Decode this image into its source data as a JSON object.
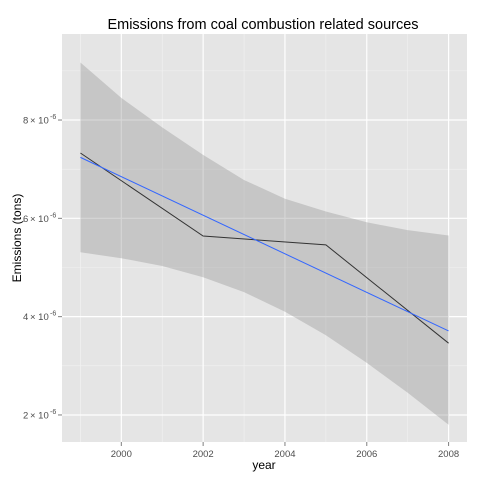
{
  "chart_data": {
    "type": "line",
    "title": "Emissions from coal combustion related sources",
    "xlabel": "year",
    "ylabel": "Emissions (tons)",
    "xlim": [
      1998.55,
      2008.45
    ],
    "ylim": [
      1.45e-06,
      9.75e-06
    ],
    "x_ticks": [
      {
        "value": 2000,
        "label": "2000"
      },
      {
        "value": 2002,
        "label": "2002"
      },
      {
        "value": 2004,
        "label": "2004"
      },
      {
        "value": 2006,
        "label": "2006"
      },
      {
        "value": 2008,
        "label": "2008"
      }
    ],
    "y_ticks": [
      {
        "value": 2e-06,
        "mantissa": "2",
        "base": "× 10",
        "exponent": "-6"
      },
      {
        "value": 4e-06,
        "mantissa": "4",
        "base": "× 10",
        "exponent": "-6"
      },
      {
        "value": 6e-06,
        "mantissa": "6",
        "base": "× 10",
        "exponent": "-6"
      },
      {
        "value": 8e-06,
        "mantissa": "8",
        "base": "× 10",
        "exponent": "-6"
      }
    ],
    "grid": true,
    "series": [
      {
        "color": "#333333",
        "points": [
          [
            1999,
            7.33e-06
          ],
          [
            2002,
            5.64e-06
          ],
          [
            2005,
            5.46e-06
          ],
          [
            2008,
            3.46e-06
          ]
        ]
      }
    ],
    "trend": {
      "type": "lm",
      "color": "#3366ff",
      "start": [
        1999,
        7.24e-06
      ],
      "end": [
        2008,
        3.71e-06
      ]
    },
    "confidence_band": {
      "color": "#999999",
      "x": [
        1999,
        2000,
        2001,
        2002,
        2003,
        2004,
        2005,
        2006,
        2007,
        2008
      ],
      "upper": [
        9.17e-06,
        8.45e-06,
        7.85e-06,
        7.29e-06,
        6.78e-06,
        6.4e-06,
        6.14e-06,
        5.92e-06,
        5.76e-06,
        5.65e-06
      ],
      "lower": [
        5.31e-06,
        5.19e-06,
        5.03e-06,
        4.8e-06,
        4.5e-06,
        4.1e-06,
        3.62e-06,
        3.06e-06,
        2.45e-06,
        1.8e-06
      ]
    },
    "background": "#e5e5e5",
    "grid_color": "#ffffff"
  }
}
